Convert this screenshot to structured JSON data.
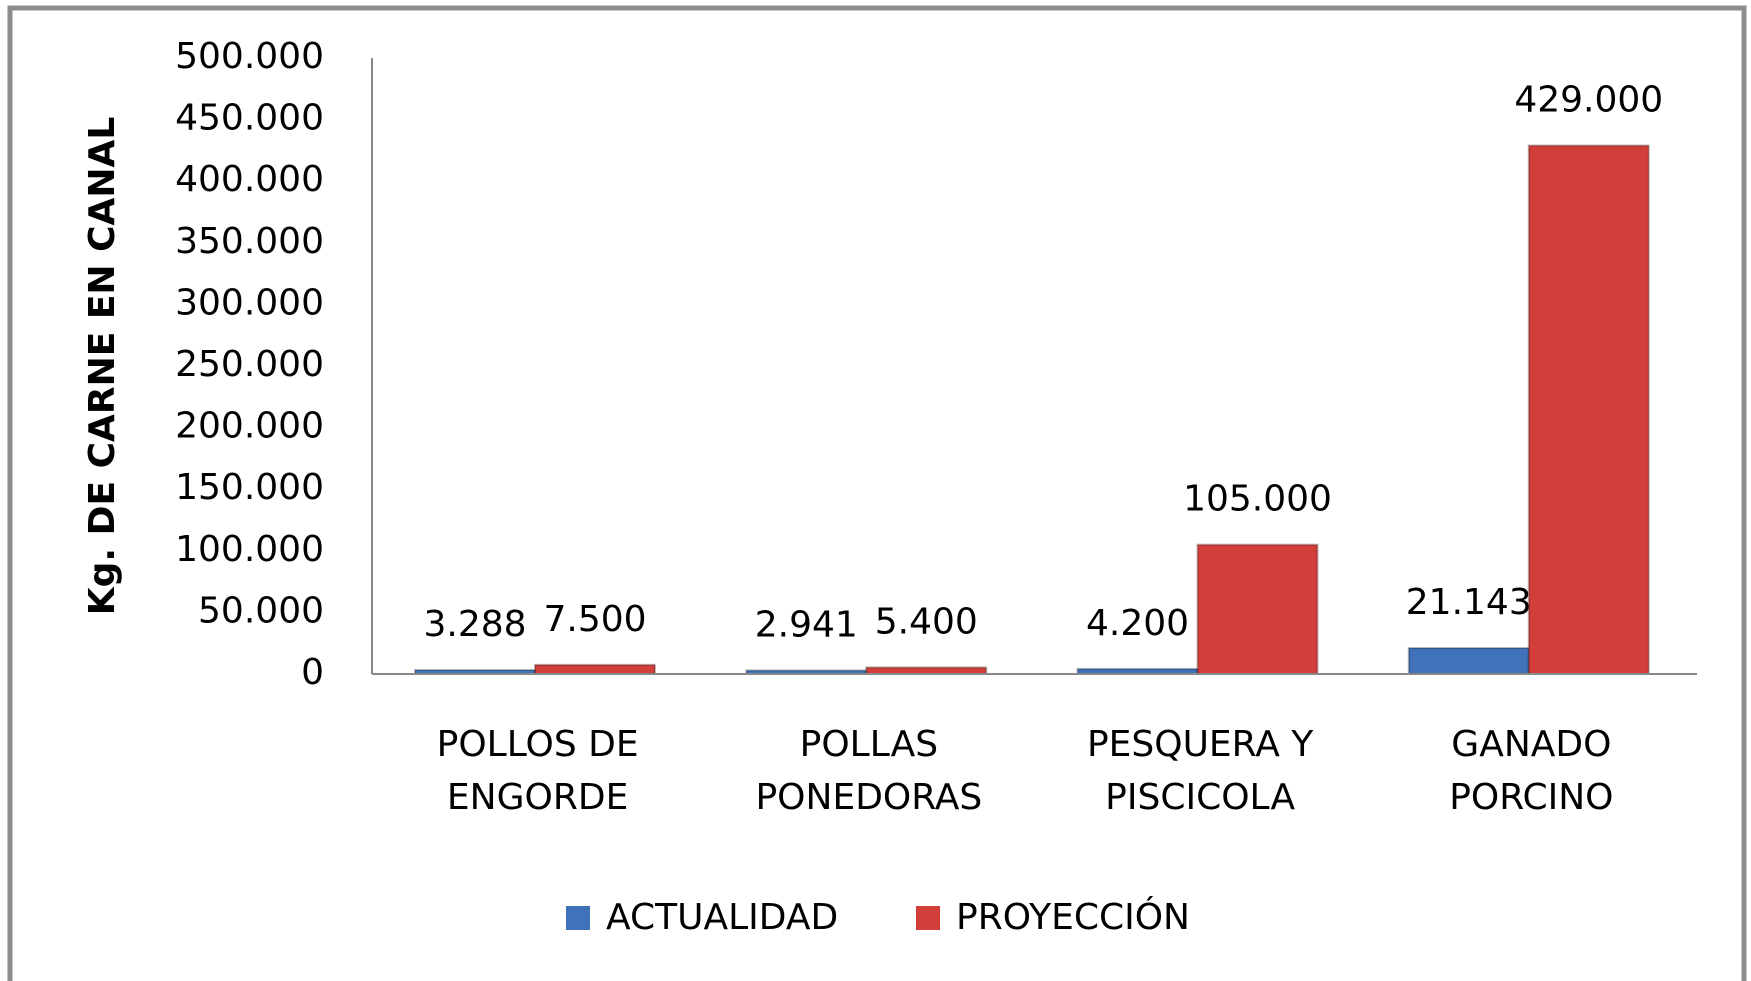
{
  "chart_data": {
    "type": "bar",
    "y_label": "Kg. DE CARNE EN CANAL",
    "categories": [
      [
        "POLLOS DE",
        "ENGORDE"
      ],
      [
        "POLLAS",
        "PONEDORAS"
      ],
      [
        "PESQUERA Y",
        "PISCICOLA"
      ],
      [
        "GANADO",
        "PORCINO"
      ]
    ],
    "series": [
      {
        "name": "ACTUALIDAD",
        "color": "#3f72b8",
        "values": [
          3288,
          2941,
          4200,
          21143
        ],
        "value_labels": [
          "3.288",
          "2.941",
          "4.200",
          "21.143"
        ]
      },
      {
        "name": "PROYECCIÓN",
        "color": "#d23f3b",
        "values": [
          7500,
          5400,
          105000,
          429000
        ],
        "value_labels": [
          "7.500",
          "5.400",
          "105.000",
          "429.000"
        ]
      }
    ],
    "ylim": [
      0,
      500000
    ],
    "yticks": [
      0,
      {
        "value": 50000,
        "label": "50.000"
      },
      {
        "value": 100000,
        "label": "100.000"
      },
      {
        "value": 150000,
        "label": "150.000"
      },
      {
        "value": 200000,
        "label": "200.000"
      },
      {
        "value": 250000,
        "label": "250.000"
      },
      {
        "value": 300000,
        "label": "300.000"
      },
      {
        "value": 350000,
        "label": "350.000"
      },
      {
        "value": 400000,
        "label": "400.000"
      },
      {
        "value": 450000,
        "label": "450.000"
      },
      {
        "value": 500000,
        "label": "500.000"
      }
    ],
    "grid": false,
    "legend": "bottom"
  }
}
